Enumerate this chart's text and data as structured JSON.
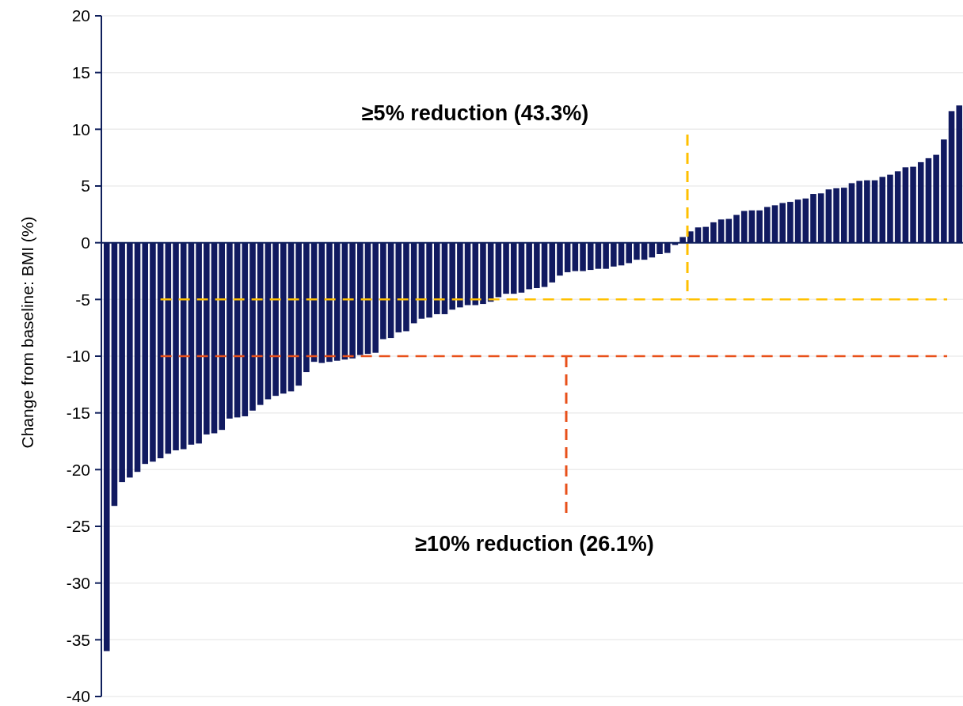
{
  "chart_data": {
    "type": "bar",
    "ylabel": "Change from baseline: BMI (%)",
    "categories": [
      null,
      null,
      null,
      null,
      null,
      null,
      null,
      null,
      null,
      null,
      null,
      null,
      null,
      null,
      null,
      null,
      null,
      null,
      null,
      null,
      null,
      null,
      null,
      null,
      null,
      null,
      null,
      null,
      null,
      null,
      null,
      null,
      null,
      null,
      null,
      null,
      null,
      null,
      null,
      null,
      null,
      null,
      null,
      null,
      null,
      null,
      null,
      null,
      null,
      null,
      null,
      null,
      null,
      null,
      null,
      null,
      null,
      null,
      null,
      null,
      null,
      null,
      null,
      null,
      null,
      null,
      null,
      null,
      null,
      null,
      null,
      null,
      null,
      null,
      null,
      null,
      null,
      null,
      null,
      null,
      null,
      null,
      null,
      null,
      null,
      null,
      null,
      null,
      null,
      null,
      null,
      null,
      null,
      null,
      null,
      null,
      null,
      null,
      null,
      null,
      null,
      null,
      null,
      null,
      null,
      null,
      null,
      null,
      null,
      null,
      null,
      null
    ],
    "values": [
      -36.0,
      -23.2,
      -21.1,
      -20.7,
      -20.2,
      -19.5,
      -19.3,
      -19.0,
      -18.6,
      -18.3,
      -18.2,
      -17.8,
      -17.7,
      -16.9,
      -16.8,
      -16.5,
      -15.5,
      -15.4,
      -15.3,
      -14.8,
      -14.3,
      -13.8,
      -13.5,
      -13.3,
      -13.1,
      -12.6,
      -11.4,
      -10.5,
      -10.6,
      -10.5,
      -10.4,
      -10.3,
      -10.2,
      -9.9,
      -9.8,
      -9.7,
      -8.5,
      -8.4,
      -7.9,
      -7.8,
      -7.1,
      -6.7,
      -6.6,
      -6.3,
      -6.3,
      -5.9,
      -5.7,
      -5.5,
      -5.5,
      -5.4,
      -5.2,
      -4.8,
      -4.5,
      -4.5,
      -4.4,
      -4.1,
      -4.0,
      -3.9,
      -3.5,
      -2.9,
      -2.6,
      -2.5,
      -2.5,
      -2.4,
      -2.3,
      -2.3,
      -2.1,
      -2.0,
      -1.8,
      -1.5,
      -1.5,
      -1.3,
      -1.0,
      -0.9,
      -0.2,
      0.5,
      1.0,
      1.35,
      1.4,
      1.8,
      2.05,
      2.1,
      2.45,
      2.8,
      2.85,
      2.85,
      3.15,
      3.3,
      3.5,
      3.6,
      3.8,
      3.9,
      4.3,
      4.35,
      4.7,
      4.8,
      4.85,
      5.25,
      5.45,
      5.5,
      5.5,
      5.8,
      6.0,
      6.3,
      6.65,
      6.7,
      7.1,
      7.45,
      7.75,
      9.1,
      11.6,
      12.1
    ],
    "color": "#111a60",
    "ylim": [
      -40,
      20
    ],
    "yticks": [
      -40,
      -35,
      -30,
      -25,
      -20,
      -15,
      -10,
      -5,
      0,
      5,
      10,
      15,
      20
    ],
    "grid": "y",
    "ref_lines": [
      {
        "axis": "y",
        "value": -5,
        "color": "#ffc000",
        "line_style": "dashed"
      },
      {
        "axis": "y",
        "value": -10,
        "color": "#e8501a",
        "line_style": "dashed"
      }
    ],
    "annotations": [
      "≥5% reduction (43.3%)",
      "≥10% reduction (26.1%)"
    ]
  }
}
